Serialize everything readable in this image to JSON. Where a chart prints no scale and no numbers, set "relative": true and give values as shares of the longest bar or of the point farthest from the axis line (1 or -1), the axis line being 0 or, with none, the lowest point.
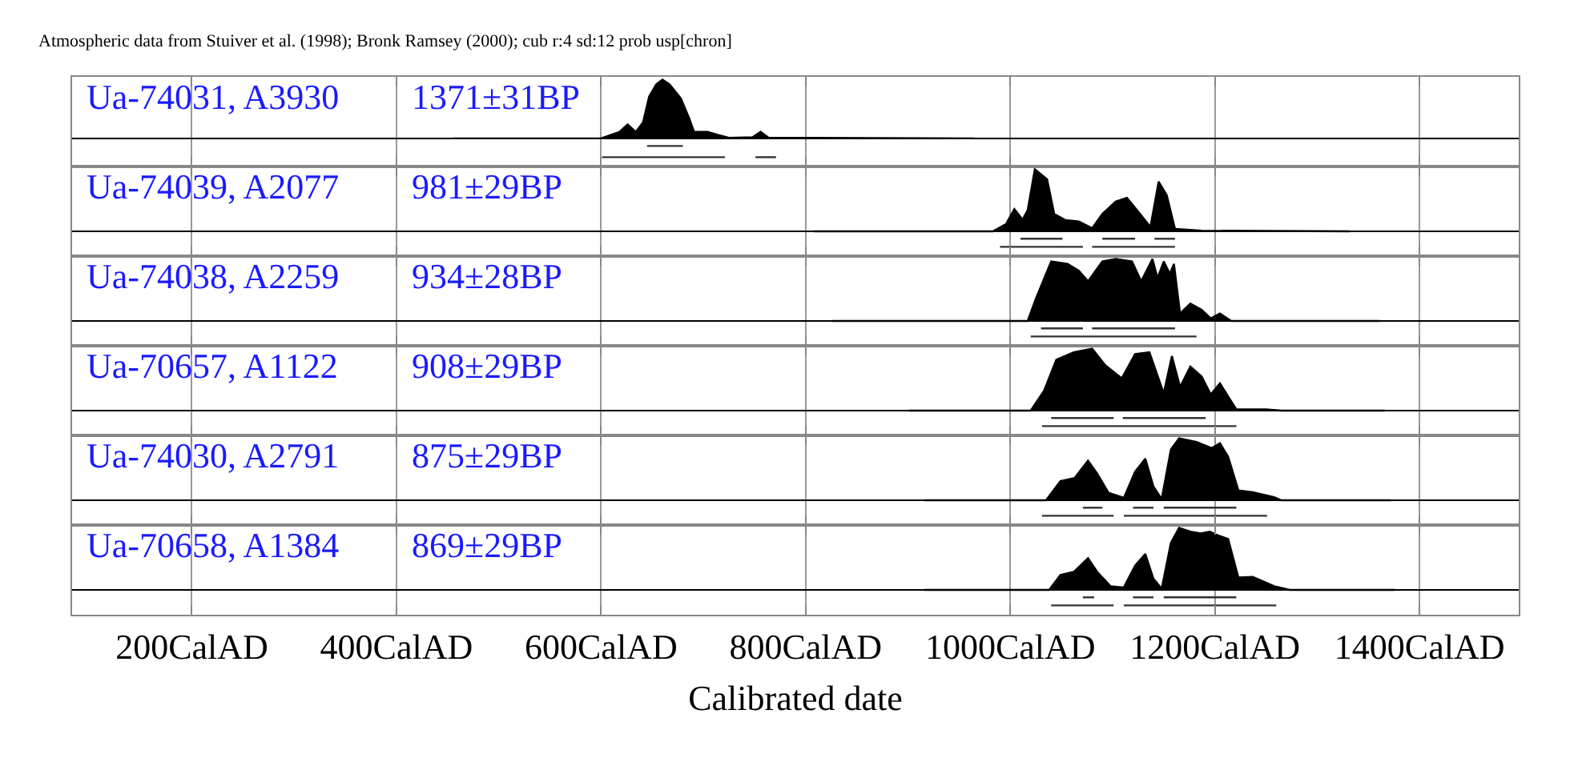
{
  "chart_data": [
    {
      "type": "area",
      "relative": true,
      "title": "Atmospheric data from Stuiver et al. (1998); Bronk Ramsey (2000); cub r:4 sd:12 prob usp[chron]",
      "annotations": [
        "Ua-74031, A3930",
        "1371±31BP"
      ],
      "grid": "x",
      "tick_labels": false,
      "xlim": [
        83,
        1497
      ],
      "xticks": [
        {
          "value": 200,
          "label": null
        },
        {
          "value": 400,
          "label": null
        },
        {
          "value": 600,
          "label": null
        },
        {
          "value": 800,
          "label": null
        },
        {
          "value": 1000,
          "label": null
        },
        {
          "value": 1200,
          "label": null
        },
        {
          "value": 1400,
          "label": null
        }
      ],
      "series": [
        {
          "color": "#000000",
          "x": [
            455,
            600,
            618,
            626,
            634,
            641,
            647,
            654,
            660,
            667,
            678,
            686,
            691,
            704,
            714,
            725,
            748,
            756,
            764,
            965
          ],
          "values": [
            0,
            0,
            0.11,
            0.24,
            0.11,
            0.27,
            0.71,
            0.92,
            1.0,
            0.92,
            0.68,
            0.35,
            0.11,
            0.11,
            0.06,
            0.01,
            0.02,
            0.11,
            0.01,
            0
          ]
        },
        {
          "type": "line",
          "color": "#333333",
          "x": [
            645,
            680
          ],
          "values": [
            -0.13,
            -0.13
          ]
        },
        {
          "type": "line",
          "color": "#333333",
          "x": [
            601,
            721
          ],
          "values": [
            -0.32,
            -0.32
          ]
        },
        {
          "type": "line",
          "color": "#333333",
          "x": [
            751,
            771
          ],
          "values": [
            -0.32,
            -0.32
          ]
        }
      ]
    },
    {
      "type": "area",
      "relative": true,
      "annotations": [
        "Ua-74039, A2077",
        "981±29BP"
      ],
      "grid": "x",
      "tick_labels": false,
      "xlim": [
        83,
        1497
      ],
      "xticks": [
        {
          "value": 200,
          "label": null
        },
        {
          "value": 400,
          "label": null
        },
        {
          "value": 600,
          "label": null
        },
        {
          "value": 800,
          "label": null
        },
        {
          "value": 1000,
          "label": null
        },
        {
          "value": 1200,
          "label": null
        },
        {
          "value": 1400,
          "label": null
        }
      ],
      "series": [
        {
          "color": "#000000",
          "x": [
            808,
            983,
            996,
            1004,
            1012,
            1017,
            1024,
            1036,
            1043,
            1054,
            1067,
            1080,
            1090,
            1103,
            1114,
            1124,
            1137,
            1145,
            1153,
            1161,
            1187,
            1332
          ],
          "values": [
            0,
            0,
            0.12,
            0.36,
            0.19,
            0.34,
            1.0,
            0.84,
            0.28,
            0.18,
            0.16,
            0.05,
            0.28,
            0.48,
            0.54,
            0.34,
            0.07,
            0.8,
            0.58,
            0.04,
            0.01,
            0
          ]
        },
        {
          "type": "line",
          "color": "#333333",
          "x": [
            1010,
            1051
          ],
          "values": [
            -0.12,
            -0.12
          ]
        },
        {
          "type": "line",
          "color": "#333333",
          "x": [
            1090,
            1122
          ],
          "values": [
            -0.12,
            -0.12
          ]
        },
        {
          "type": "line",
          "color": "#333333",
          "x": [
            1141,
            1161
          ],
          "values": [
            -0.12,
            -0.12
          ]
        },
        {
          "type": "line",
          "color": "#333333",
          "x": [
            990,
            1071
          ],
          "values": [
            -0.25,
            -0.25
          ]
        },
        {
          "type": "line",
          "color": "#333333",
          "x": [
            1080,
            1161
          ],
          "values": [
            -0.25,
            -0.25
          ]
        }
      ]
    },
    {
      "type": "area",
      "relative": true,
      "annotations": [
        "Ua-74038, A2259",
        "934±28BP"
      ],
      "grid": "x",
      "tick_labels": false,
      "xlim": [
        83,
        1497
      ],
      "xticks": [
        {
          "value": 200,
          "label": null
        },
        {
          "value": 400,
          "label": null
        },
        {
          "value": 600,
          "label": null
        },
        {
          "value": 800,
          "label": null
        },
        {
          "value": 1000,
          "label": null
        },
        {
          "value": 1200,
          "label": null
        },
        {
          "value": 1400,
          "label": null
        }
      ],
      "series": [
        {
          "color": "#000000",
          "x": [
            826,
            1017,
            1025,
            1040,
            1056,
            1067,
            1076,
            1090,
            1103,
            1119,
            1128,
            1139,
            1144,
            1150,
            1156,
            1160,
            1166,
            1176,
            1187,
            1196,
            1205,
            1216,
            1361
          ],
          "values": [
            0,
            0,
            0.36,
            0.96,
            0.92,
            0.81,
            0.64,
            0.96,
            1.0,
            0.96,
            0.64,
            1.0,
            0.69,
            0.96,
            0.76,
            0.92,
            0.12,
            0.28,
            0.18,
            0.04,
            0.12,
            0,
            0
          ]
        },
        {
          "type": "line",
          "color": "#333333",
          "x": [
            1030,
            1071
          ],
          "values": [
            -0.12,
            -0.12
          ]
        },
        {
          "type": "line",
          "color": "#333333",
          "x": [
            1080,
            1161
          ],
          "values": [
            -0.12,
            -0.12
          ]
        },
        {
          "type": "line",
          "color": "#333333",
          "x": [
            1020,
            1182
          ],
          "values": [
            -0.25,
            -0.25
          ]
        }
      ]
    },
    {
      "type": "area",
      "relative": true,
      "annotations": [
        "Ua-70657, A1122",
        "908±29BP"
      ],
      "grid": "x",
      "tick_labels": false,
      "xlim": [
        83,
        1497
      ],
      "xticks": [
        {
          "value": 200,
          "label": null
        },
        {
          "value": 400,
          "label": null
        },
        {
          "value": 600,
          "label": null
        },
        {
          "value": 800,
          "label": null
        },
        {
          "value": 1000,
          "label": null
        },
        {
          "value": 1200,
          "label": null
        },
        {
          "value": 1400,
          "label": null
        }
      ],
      "series": [
        {
          "color": "#000000",
          "x": [
            901,
            1020,
            1033,
            1045,
            1062,
            1080,
            1093,
            1109,
            1122,
            1136,
            1150,
            1158,
            1166,
            1176,
            1187,
            1196,
            1205,
            1214,
            1221,
            1250,
            1265,
            1366
          ],
          "values": [
            0,
            0,
            0.32,
            0.82,
            0.94,
            1.0,
            0.73,
            0.52,
            0.91,
            0.94,
            0.28,
            0.88,
            0.38,
            0.71,
            0.55,
            0.26,
            0.44,
            0.2,
            0.02,
            0.02,
            0,
            0
          ]
        },
        {
          "type": "line",
          "color": "#333333",
          "x": [
            1040,
            1101
          ],
          "values": [
            -0.12,
            -0.12
          ]
        },
        {
          "type": "line",
          "color": "#333333",
          "x": [
            1110,
            1191
          ],
          "values": [
            -0.12,
            -0.12
          ]
        },
        {
          "type": "line",
          "color": "#333333",
          "x": [
            1031,
            1221
          ],
          "values": [
            -0.25,
            -0.25
          ]
        }
      ]
    },
    {
      "type": "area",
      "relative": true,
      "annotations": [
        "Ua-74030, A2791",
        "875±29BP"
      ],
      "grid": "x",
      "tick_labels": false,
      "xlim": [
        83,
        1497
      ],
      "xticks": [
        {
          "value": 200,
          "label": null
        },
        {
          "value": 400,
          "label": null
        },
        {
          "value": 600,
          "label": null
        },
        {
          "value": 800,
          "label": null
        },
        {
          "value": 1000,
          "label": null
        },
        {
          "value": 1200,
          "label": null
        },
        {
          "value": 1400,
          "label": null
        }
      ],
      "series": [
        {
          "color": "#000000",
          "x": [
            916,
            1035,
            1049,
            1063,
            1076,
            1085,
            1096,
            1111,
            1122,
            1132,
            1140,
            1148,
            1157,
            1165,
            1182,
            1197,
            1205,
            1213,
            1223,
            1237,
            1258,
            1265,
            1372
          ],
          "values": [
            0,
            0,
            0.31,
            0.36,
            0.64,
            0.43,
            0.12,
            0.04,
            0.46,
            0.67,
            0.22,
            0.02,
            0.82,
            1.0,
            0.94,
            0.84,
            0.92,
            0.7,
            0.16,
            0.13,
            0.05,
            0,
            0
          ]
        },
        {
          "type": "line",
          "color": "#333333",
          "x": [
            1071,
            1090
          ],
          "values": [
            -0.12,
            -0.12
          ]
        },
        {
          "type": "line",
          "color": "#333333",
          "x": [
            1120,
            1140
          ],
          "values": [
            -0.12,
            -0.12
          ]
        },
        {
          "type": "line",
          "color": "#333333",
          "x": [
            1150,
            1221
          ],
          "values": [
            -0.12,
            -0.12
          ]
        },
        {
          "type": "line",
          "color": "#333333",
          "x": [
            1031,
            1101
          ],
          "values": [
            -0.25,
            -0.25
          ]
        },
        {
          "type": "line",
          "color": "#333333",
          "x": [
            1111,
            1251
          ],
          "values": [
            -0.25,
            -0.25
          ]
        }
      ]
    },
    {
      "type": "area",
      "relative": true,
      "annotations": [
        "Ua-70658, A1384",
        "869±29BP"
      ],
      "xlabel": "Calibrated date",
      "grid": "x",
      "tick_labels": "x",
      "xlim": [
        83,
        1497
      ],
      "xticks": [
        {
          "value": 200,
          "label": "200CalAD"
        },
        {
          "value": 400,
          "label": "400CalAD"
        },
        {
          "value": 600,
          "label": "600CalAD"
        },
        {
          "value": 800,
          "label": "800CalAD"
        },
        {
          "value": 1000,
          "label": "1000CalAD"
        },
        {
          "value": 1200,
          "label": "1200CalAD"
        },
        {
          "value": 1400,
          "label": "1400CalAD"
        }
      ],
      "series": [
        {
          "color": "#000000",
          "x": [
            916,
            1038,
            1049,
            1062,
            1076,
            1085,
            1098,
            1111,
            1122,
            1132,
            1140,
            1148,
            1157,
            1165,
            1176,
            1186,
            1195,
            1203,
            1213,
            1223,
            1237,
            1258,
            1273,
            1376
          ],
          "values": [
            0,
            0,
            0.24,
            0.29,
            0.51,
            0.29,
            0.06,
            0.04,
            0.39,
            0.58,
            0.18,
            0.02,
            0.76,
            1.0,
            0.94,
            0.91,
            0.94,
            0.88,
            0.82,
            0.2,
            0.21,
            0.06,
            0,
            0
          ]
        },
        {
          "type": "line",
          "color": "#333333",
          "x": [
            1071,
            1082
          ],
          "values": [
            -0.12,
            -0.12
          ]
        },
        {
          "type": "line",
          "color": "#333333",
          "x": [
            1120,
            1140
          ],
          "values": [
            -0.12,
            -0.12
          ]
        },
        {
          "type": "line",
          "color": "#333333",
          "x": [
            1150,
            1221
          ],
          "values": [
            -0.12,
            -0.12
          ]
        },
        {
          "type": "line",
          "color": "#333333",
          "x": [
            1040,
            1101
          ],
          "values": [
            -0.25,
            -0.25
          ]
        },
        {
          "type": "line",
          "color": "#333333",
          "x": [
            1111,
            1260
          ],
          "values": [
            -0.25,
            -0.25
          ]
        }
      ]
    }
  ]
}
